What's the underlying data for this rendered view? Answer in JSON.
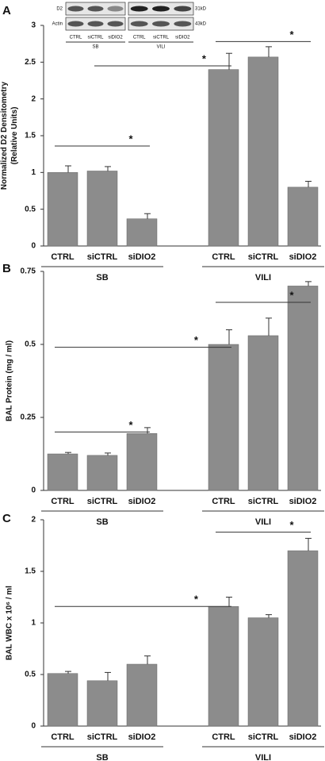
{
  "chart_data": [
    {
      "type": "bar",
      "label": "A",
      "y_label": [
        "Normalized  D2 Densitometry",
        "(Relative Units)"
      ],
      "categories": [
        "CTRL",
        "siCTRL",
        "siDIO2",
        "CTRL",
        "siCTRL",
        "siDIO2"
      ],
      "groups": [
        "SB",
        "VILI"
      ],
      "values": [
        1.0,
        1.02,
        0.37,
        2.4,
        2.57,
        0.8
      ],
      "errors": [
        0.09,
        0.06,
        0.07,
        0.22,
        0.14,
        0.08
      ],
      "color": "#8c8c8c",
      "ylim": [
        0,
        3
      ],
      "yticks": [
        0,
        0.5,
        1,
        1.5,
        2,
        2.5,
        3
      ],
      "annotations": [
        {
          "text": "*",
          "from": 0,
          "to": 2,
          "y": 1.36
        },
        {
          "text": "*",
          "from": 1,
          "to": 3,
          "y": 2.45
        },
        {
          "text": "*",
          "from": 3,
          "to": 5,
          "y": 2.78
        }
      ],
      "blot": {
        "rows": [
          "D2",
          "Actin"
        ],
        "sizes": [
          "31kD",
          "43kD"
        ],
        "lanes": [
          "CTRL",
          "siCTRL",
          "siDIO2"
        ],
        "groups": [
          "SB",
          "VILI"
        ]
      }
    },
    {
      "type": "bar",
      "label": "B",
      "y_label": [
        "BAL Protein (mg / ml)"
      ],
      "categories": [
        "CTRL",
        "siCTRL",
        "siDIO2",
        "CTRL",
        "siCTRL",
        "siDIO2"
      ],
      "groups": [
        "SB",
        "VILI"
      ],
      "values": [
        0.125,
        0.12,
        0.195,
        0.5,
        0.53,
        0.7
      ],
      "errors": [
        0.005,
        0.008,
        0.02,
        0.05,
        0.06,
        0.015
      ],
      "color": "#8c8c8c",
      "ylim": [
        0,
        0.75
      ],
      "yticks": [
        0,
        0.25,
        0.5,
        0.75
      ],
      "annotations": [
        {
          "text": "*",
          "from": 0,
          "to": 2,
          "y": 0.2
        },
        {
          "text": "*",
          "from": 0,
          "to": 3,
          "y": 0.49
        },
        {
          "text": "*",
          "from": 3,
          "to": 5,
          "y": 0.644
        }
      ]
    },
    {
      "type": "bar",
      "label": "C",
      "y_label": [
        "BAL WBC x 10⁶ / ml"
      ],
      "categories": [
        "CTRL",
        "siCTRL",
        "siDIO2",
        "CTRL",
        "siCTRL",
        "siDIO2"
      ],
      "groups": [
        "SB",
        "VILI"
      ],
      "values": [
        0.51,
        0.44,
        0.6,
        1.16,
        1.05,
        1.7
      ],
      "errors": [
        0.02,
        0.08,
        0.08,
        0.09,
        0.03,
        0.12
      ],
      "color": "#8c8c8c",
      "ylim": [
        0,
        2
      ],
      "yticks": [
        0,
        0.5,
        1,
        1.5,
        2
      ],
      "annotations": [
        {
          "text": "*",
          "from": 0,
          "to": 3,
          "y": 1.16
        },
        {
          "text": "*",
          "from": 3,
          "to": 5,
          "y": 1.88
        }
      ]
    }
  ]
}
